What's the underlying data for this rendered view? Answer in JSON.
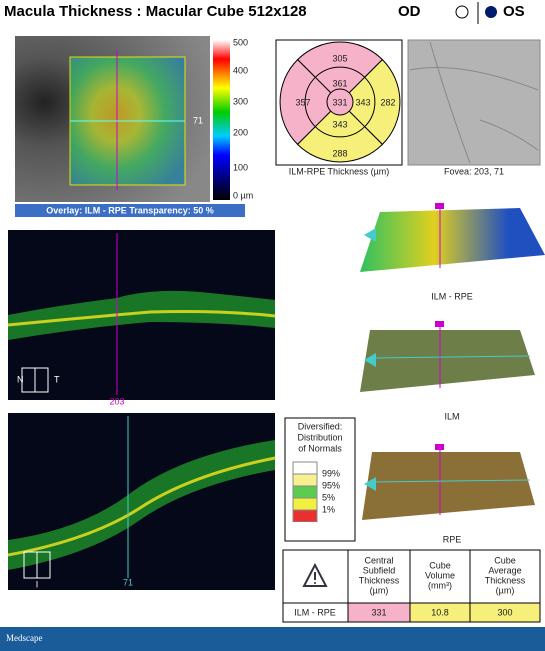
{
  "header": {
    "title": "Macula Thickness : Macular Cube 512x128",
    "eye_od": "OD",
    "eye_os": "OS"
  },
  "color_scale": {
    "labels": [
      "500",
      "400",
      "300",
      "200",
      "100",
      "0 µm"
    ]
  },
  "overlay_bar": "Overlay: ILM - RPE  Transparency: 50 %",
  "fundus_marker": "71",
  "etdrs": {
    "superior_outer": 305,
    "superior_inner": 361,
    "nasal_outer": 357,
    "center": 331,
    "temporal_inner": 343,
    "temporal_outer": 282,
    "inferior_inner": 343,
    "inferior_outer": 288,
    "caption": "ILM-RPE Thickness (µm)"
  },
  "fovea_caption": "Fovea: 203, 71",
  "bscan_1": {
    "marker": "203",
    "left": "N",
    "right": "T"
  },
  "bscan_2": {
    "marker": "71",
    "left": "I"
  },
  "surfaces": [
    "ILM - RPE",
    "ILM",
    "RPE"
  ],
  "legend": {
    "title": [
      "Diversified:",
      "Distribution",
      "of Normals"
    ],
    "labels": [
      "99%",
      "95%",
      "5%",
      "1%"
    ]
  },
  "table": {
    "headers": [
      [
        "Central",
        "Subfield",
        "Thickness",
        "(µm)"
      ],
      [
        "Cube",
        "Volume",
        "(mm³)"
      ],
      [
        "Cube",
        "Average",
        "Thickness",
        "(µm)"
      ]
    ],
    "row": [
      "ILM - RPE",
      "331",
      "10.8",
      "300"
    ]
  },
  "footer": "Medscape"
}
